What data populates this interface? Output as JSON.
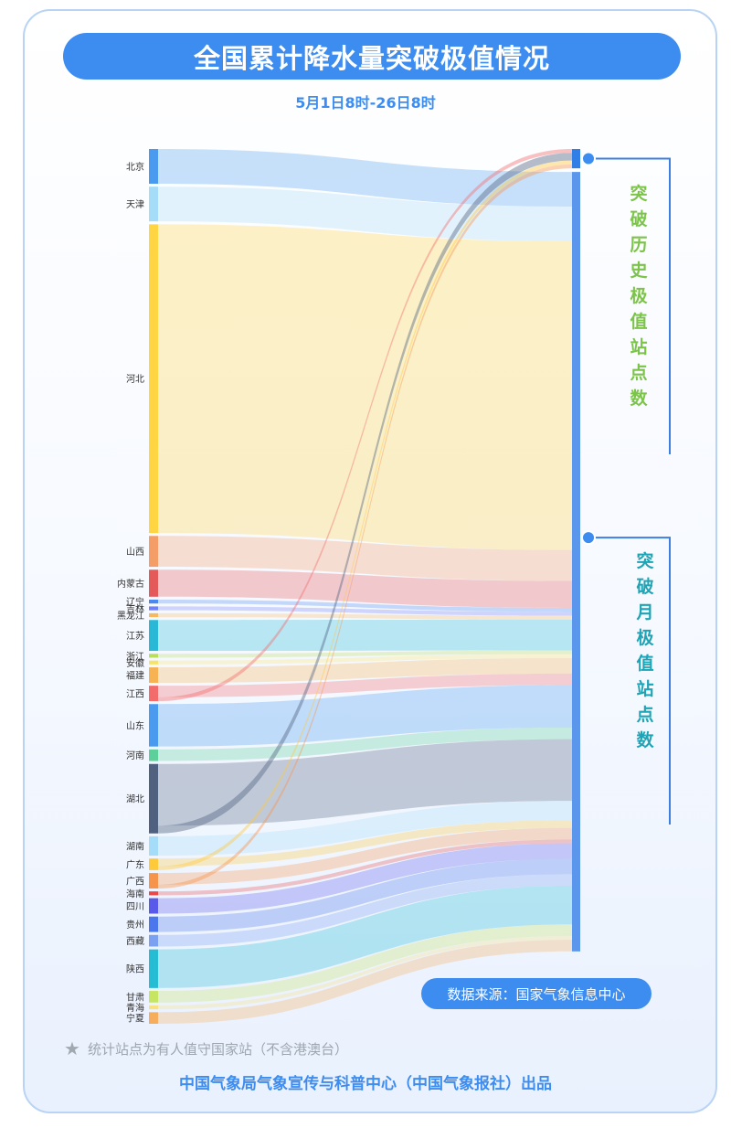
{
  "title": "全国累计降水量突破极值情况",
  "subtitle": "5月1日8时-26日8时",
  "source": "数据来源：国家气象信息中心",
  "note": "统计站点为有人值守国家站（不含港澳台）",
  "note_icon": "star-icon",
  "footer": "中国气象局气象宣传与科普中心（中国气象报社）出品",
  "chart_data": {
    "type": "sankey",
    "targets": [
      {
        "label": "突破历史极值站点数",
        "color": "#7cc34a",
        "value": 5
      },
      {
        "label": "突破月极值站点数",
        "color": "#1ea4b4",
        "value": 197
      }
    ],
    "nodes": [
      {
        "name": "北京",
        "color": "#4a9bef",
        "hist": 0,
        "month": 9
      },
      {
        "name": "天津",
        "color": "#a5dcf7",
        "hist": 0,
        "month": 9
      },
      {
        "name": "河北",
        "color": "#ffd544",
        "hist": 0,
        "month": 80
      },
      {
        "name": "山西",
        "color": "#f59d66",
        "hist": 0,
        "month": 8
      },
      {
        "name": "内蒙古",
        "color": "#e45a5a",
        "hist": 0,
        "month": 7
      },
      {
        "name": "辽宁",
        "color": "#4a87f0",
        "hist": 0,
        "month": 1
      },
      {
        "name": "吉林",
        "color": "#6f7ff5",
        "hist": 0,
        "month": 1
      },
      {
        "name": "黑龙江",
        "color": "#f7b860",
        "hist": 0,
        "month": 1
      },
      {
        "name": "江苏",
        "color": "#29b8d6",
        "hist": 0,
        "month": 8
      },
      {
        "name": "浙江",
        "color": "#b8de5c",
        "hist": 0,
        "month": 1
      },
      {
        "name": "安徽",
        "color": "#f7e36a",
        "hist": 0,
        "month": 1
      },
      {
        "name": "福建",
        "color": "#f7b254",
        "hist": 0,
        "month": 4
      },
      {
        "name": "江西",
        "color": "#f46b6b",
        "hist": 1,
        "month": 3
      },
      {
        "name": "山东",
        "color": "#4a9bef",
        "hist": 0,
        "month": 11
      },
      {
        "name": "河南",
        "color": "#5ccf9a",
        "hist": 0,
        "month": 3
      },
      {
        "name": "湖北",
        "color": "#4f617f",
        "hist": 2,
        "month": 16
      },
      {
        "name": "湖南",
        "color": "#a5dcf7",
        "hist": 0,
        "month": 5
      },
      {
        "name": "广东",
        "color": "#ffc93c",
        "hist": 1,
        "month": 2
      },
      {
        "name": "广西",
        "color": "#f7944c",
        "hist": 1,
        "month": 3
      },
      {
        "name": "海南",
        "color": "#e84848",
        "hist": 0,
        "month": 1
      },
      {
        "name": "四川",
        "color": "#5a5aea",
        "hist": 0,
        "month": 4
      },
      {
        "name": "贵州",
        "color": "#4a78ec",
        "hist": 0,
        "month": 4
      },
      {
        "name": "西藏",
        "color": "#7aa0f2",
        "hist": 0,
        "month": 3
      },
      {
        "name": "陕西",
        "color": "#26bcd4",
        "hist": 0,
        "month": 10
      },
      {
        "name": "甘肃",
        "color": "#c6e563",
        "hist": 0,
        "month": 3
      },
      {
        "name": "青海",
        "color": "#f7e27e",
        "hist": 0,
        "month": 1
      },
      {
        "name": "宁夏",
        "color": "#f7ae5c",
        "hist": 0,
        "month": 3
      }
    ]
  }
}
